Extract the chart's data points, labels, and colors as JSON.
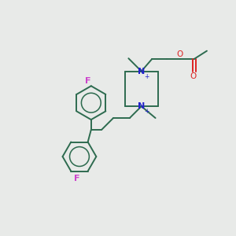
{
  "background_color": "#e8eae8",
  "bond_color": "#2d6b4f",
  "N_color": "#2222cc",
  "F_color": "#cc44cc",
  "O_color": "#dd2222",
  "figsize": [
    3.0,
    3.0
  ],
  "dpi": 100,
  "xlim": [
    0,
    10
  ],
  "ylim": [
    0,
    10
  ]
}
